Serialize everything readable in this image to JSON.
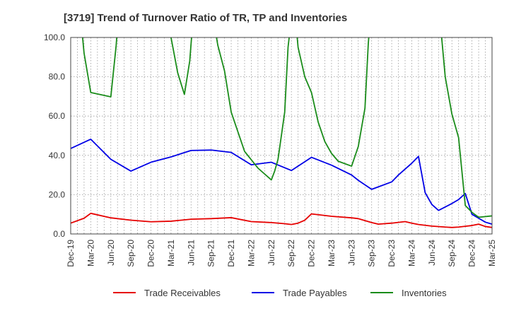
{
  "chart_data": {
    "type": "line",
    "title": "[3719]  Trend of Turnover Ratio of TR, TP and Inventories",
    "xlabel": "",
    "ylabel": "",
    "ylim": [
      0,
      100
    ],
    "yticks": [
      "0.0",
      "20.0",
      "40.0",
      "60.0",
      "80.0",
      "100.0"
    ],
    "xticks": [
      "Dec-19",
      "Mar-20",
      "Jun-20",
      "Sep-20",
      "Dec-20",
      "Mar-21",
      "Jun-21",
      "Sep-21",
      "Dec-21",
      "Mar-22",
      "Jun-22",
      "Sep-22",
      "Dec-22",
      "Mar-23",
      "Jun-23",
      "Sep-23",
      "Dec-23",
      "Mar-24",
      "Jun-24",
      "Sep-24",
      "Dec-24",
      "Mar-25"
    ],
    "x_unit": "months since Dec-19",
    "grid": "vertical dotted at months, horizontal dotted at y ticks",
    "legend_placement": "bottom",
    "series": [
      {
        "name": "Trade Receivables",
        "color": "#e60000",
        "points": [
          [
            0,
            5.5
          ],
          [
            2,
            8
          ],
          [
            3,
            10.5
          ],
          [
            6,
            8.2
          ],
          [
            9,
            7
          ],
          [
            12,
            6.2
          ],
          [
            15,
            6.5
          ],
          [
            18,
            7.5
          ],
          [
            21,
            7.8
          ],
          [
            24,
            8.3
          ],
          [
            27,
            6.3
          ],
          [
            30,
            5.8
          ],
          [
            32,
            5.2
          ],
          [
            33,
            4.8
          ],
          [
            34,
            5.5
          ],
          [
            35,
            7
          ],
          [
            36,
            10.2
          ],
          [
            39,
            9
          ],
          [
            42,
            8.2
          ],
          [
            43,
            7.8
          ],
          [
            45,
            5.8
          ],
          [
            46,
            5
          ],
          [
            48,
            5.5
          ],
          [
            50,
            6.3
          ],
          [
            51,
            5.5
          ],
          [
            52,
            4.8
          ],
          [
            54,
            4
          ],
          [
            56,
            3.5
          ],
          [
            57,
            3.3
          ],
          [
            58,
            3.5
          ],
          [
            59,
            3.9
          ],
          [
            60,
            4.3
          ],
          [
            61,
            5
          ],
          [
            62,
            3.8
          ],
          [
            63,
            3.3
          ],
          [
            64,
            3
          ],
          [
            65,
            2.8
          ]
        ]
      },
      {
        "name": "Trade Payables",
        "color": "#0000e6",
        "points": [
          [
            0,
            43.5
          ],
          [
            3,
            48.2
          ],
          [
            6,
            38
          ],
          [
            9,
            32
          ],
          [
            12,
            36.5
          ],
          [
            15,
            39.2
          ],
          [
            18,
            42.5
          ],
          [
            21,
            42.7
          ],
          [
            24,
            41.5
          ],
          [
            27,
            35.2
          ],
          [
            30,
            36.5
          ],
          [
            33,
            32.3
          ],
          [
            36,
            39
          ],
          [
            39,
            35
          ],
          [
            42,
            30
          ],
          [
            43,
            27.3
          ],
          [
            45,
            22.7
          ],
          [
            48,
            26.5
          ],
          [
            49,
            30
          ],
          [
            51,
            36
          ],
          [
            52,
            39.5
          ],
          [
            53,
            21
          ],
          [
            54,
            15
          ],
          [
            55,
            12
          ],
          [
            57,
            15.5
          ],
          [
            58,
            17.5
          ],
          [
            59,
            20.6
          ],
          [
            60,
            10
          ],
          [
            61,
            8
          ],
          [
            62,
            6
          ],
          [
            63,
            5
          ]
        ]
      },
      {
        "name": "Inventories",
        "color": "#1a8c1a",
        "points": [
          [
            1.5,
            110
          ],
          [
            2,
            92
          ],
          [
            3,
            72
          ],
          [
            6,
            69.8
          ],
          [
            6.8,
            96
          ],
          [
            7.1,
            110
          ],
          [
            14.8,
            110
          ],
          [
            15,
            100
          ],
          [
            16,
            82
          ],
          [
            17,
            71
          ],
          [
            17.8,
            88
          ],
          [
            18.3,
            110
          ],
          [
            21.3,
            110
          ],
          [
            22,
            96
          ],
          [
            23,
            83
          ],
          [
            24,
            62
          ],
          [
            25,
            52
          ],
          [
            26,
            42
          ],
          [
            28,
            33.5
          ],
          [
            30,
            27.5
          ],
          [
            30.5,
            32
          ],
          [
            31,
            38
          ],
          [
            32,
            62
          ],
          [
            32.5,
            95
          ],
          [
            33,
            110
          ],
          [
            33.6,
            110
          ],
          [
            34,
            95
          ],
          [
            35,
            80
          ],
          [
            36,
            72
          ],
          [
            37,
            57
          ],
          [
            38,
            47
          ],
          [
            39,
            41
          ],
          [
            40,
            37
          ],
          [
            42,
            34.5
          ],
          [
            43,
            44.5
          ],
          [
            44,
            64
          ],
          [
            44.5,
            97
          ],
          [
            44.8,
            110
          ],
          [
            55.2,
            110
          ],
          [
            56,
            80
          ],
          [
            57,
            61
          ],
          [
            58,
            49
          ],
          [
            59,
            14.5
          ],
          [
            60,
            11
          ],
          [
            61,
            8.5
          ],
          [
            63,
            9.2
          ],
          [
            65,
            9.5
          ]
        ]
      }
    ]
  }
}
